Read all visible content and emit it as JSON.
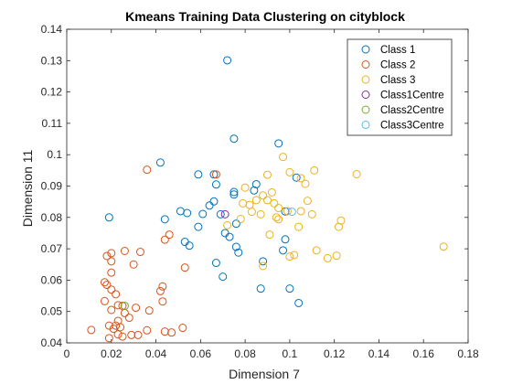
{
  "chart_data": {
    "type": "scatter",
    "title": "Kmeans Training Data Clustering on cityblock",
    "xlabel": "Dimension 7",
    "ylabel": "Dimension 11",
    "xlim": [
      0,
      0.18
    ],
    "ylim": [
      0.04,
      0.14
    ],
    "xticks": [
      "0",
      "0.02",
      "0.04",
      "0.06",
      "0.08",
      "0.1",
      "0.12",
      "0.14",
      "0.16",
      "0.18"
    ],
    "yticks": [
      "0.04",
      "0.05",
      "0.06",
      "0.07",
      "0.08",
      "0.09",
      "0.1",
      "0.11",
      "0.12",
      "0.13",
      "0.14"
    ],
    "grid": false,
    "legend_position": "top-right",
    "series": [
      {
        "name": "Class 1",
        "color": "#0072BD",
        "points": [
          [
            0.072,
            0.1301
          ],
          [
            0.075,
            0.1051
          ],
          [
            0.042,
            0.0975
          ],
          [
            0.059,
            0.0937
          ],
          [
            0.066,
            0.0937
          ],
          [
            0.095,
            0.1036
          ],
          [
            0.103,
            0.0927
          ],
          [
            0.085,
            0.0906
          ],
          [
            0.067,
            0.0905
          ],
          [
            0.075,
            0.0881
          ],
          [
            0.084,
            0.0886
          ],
          [
            0.075,
            0.0873
          ],
          [
            0.066,
            0.0851
          ],
          [
            0.064,
            0.0838
          ],
          [
            0.051,
            0.082
          ],
          [
            0.054,
            0.0814
          ],
          [
            0.061,
            0.0811
          ],
          [
            0.069,
            0.081
          ],
          [
            0.044,
            0.0794
          ],
          [
            0.019,
            0.08
          ],
          [
            0.076,
            0.078
          ],
          [
            0.059,
            0.077
          ],
          [
            0.071,
            0.075
          ],
          [
            0.073,
            0.0738
          ],
          [
            0.053,
            0.0722
          ],
          [
            0.055,
            0.071
          ],
          [
            0.076,
            0.0706
          ],
          [
            0.098,
            0.073
          ],
          [
            0.097,
            0.0695
          ],
          [
            0.077,
            0.0688
          ],
          [
            0.088,
            0.066
          ],
          [
            0.067,
            0.0655
          ],
          [
            0.07,
            0.0611
          ],
          [
            0.087,
            0.0573
          ],
          [
            0.1,
            0.0573
          ],
          [
            0.104,
            0.0527
          ],
          [
            0.098,
            0.0819
          ]
        ]
      },
      {
        "name": "Class 2",
        "color": "#D95319",
        "points": [
          [
            0.036,
            0.0952
          ],
          [
            0.067,
            0.0937
          ],
          [
            0.046,
            0.0745
          ],
          [
            0.044,
            0.0729
          ],
          [
            0.02,
            0.0686
          ],
          [
            0.026,
            0.0693
          ],
          [
            0.033,
            0.069
          ],
          [
            0.018,
            0.0677
          ],
          [
            0.02,
            0.066
          ],
          [
            0.03,
            0.065
          ],
          [
            0.053,
            0.064
          ],
          [
            0.02,
            0.0624
          ],
          [
            0.043,
            0.058
          ],
          [
            0.017,
            0.0593
          ],
          [
            0.018,
            0.0585
          ],
          [
            0.02,
            0.057
          ],
          [
            0.042,
            0.0565
          ],
          [
            0.022,
            0.0555
          ],
          [
            0.017,
            0.0533
          ],
          [
            0.043,
            0.0532
          ],
          [
            0.023,
            0.052
          ],
          [
            0.031,
            0.0512
          ],
          [
            0.025,
            0.0518
          ],
          [
            0.037,
            0.0503
          ],
          [
            0.02,
            0.0505
          ],
          [
            0.026,
            0.0495
          ],
          [
            0.028,
            0.048
          ],
          [
            0.023,
            0.047
          ],
          [
            0.019,
            0.0455
          ],
          [
            0.022,
            0.0455
          ],
          [
            0.024,
            0.045
          ],
          [
            0.021,
            0.0445
          ],
          [
            0.036,
            0.044
          ],
          [
            0.011,
            0.0441
          ],
          [
            0.044,
            0.0436
          ],
          [
            0.047,
            0.0433
          ],
          [
            0.052,
            0.0448
          ],
          [
            0.023,
            0.0427
          ],
          [
            0.029,
            0.0425
          ],
          [
            0.032,
            0.0425
          ],
          [
            0.025,
            0.042
          ],
          [
            0.019,
            0.0415
          ]
        ]
      },
      {
        "name": "Class 3",
        "color": "#EDB120",
        "points": [
          [
            0.1,
            0.0944
          ],
          [
            0.09,
            0.0936
          ],
          [
            0.111,
            0.095
          ],
          [
            0.13,
            0.0938
          ],
          [
            0.097,
            0.0993
          ],
          [
            0.105,
            0.0925
          ],
          [
            0.107,
            0.0907
          ],
          [
            0.08,
            0.0895
          ],
          [
            0.092,
            0.088
          ],
          [
            0.088,
            0.087
          ],
          [
            0.085,
            0.0855
          ],
          [
            0.09,
            0.0855
          ],
          [
            0.108,
            0.0853
          ],
          [
            0.093,
            0.0845
          ],
          [
            0.095,
            0.083
          ],
          [
            0.079,
            0.0845
          ],
          [
            0.082,
            0.084
          ],
          [
            0.083,
            0.0818
          ],
          [
            0.087,
            0.081
          ],
          [
            0.099,
            0.082
          ],
          [
            0.105,
            0.082
          ],
          [
            0.11,
            0.081
          ],
          [
            0.094,
            0.08
          ],
          [
            0.078,
            0.0795
          ],
          [
            0.095,
            0.0794
          ],
          [
            0.123,
            0.079
          ],
          [
            0.072,
            0.0775
          ],
          [
            0.104,
            0.077
          ],
          [
            0.122,
            0.077
          ],
          [
            0.091,
            0.0745
          ],
          [
            0.112,
            0.0695
          ],
          [
            0.121,
            0.0678
          ],
          [
            0.1,
            0.0675
          ],
          [
            0.117,
            0.067
          ],
          [
            0.169,
            0.0707
          ],
          [
            0.088,
            0.0645
          ],
          [
            0.102,
            0.068
          ]
        ]
      },
      {
        "name": "Class1Centre",
        "color": "#7E2F8E",
        "points": [
          [
            0.071,
            0.081
          ]
        ]
      },
      {
        "name": "Class2Centre",
        "color": "#77AC30",
        "points": [
          [
            0.026,
            0.0518
          ]
        ]
      },
      {
        "name": "Class3Centre",
        "color": "#4DBEEE",
        "points": [
          [
            0.101,
            0.0818
          ]
        ]
      }
    ]
  }
}
